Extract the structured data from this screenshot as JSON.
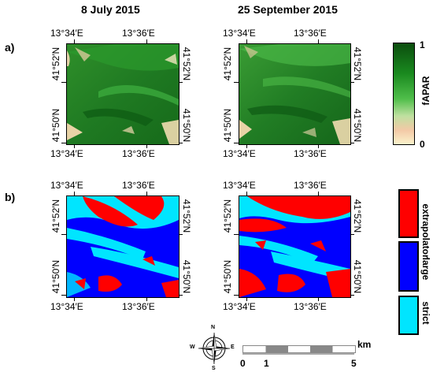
{
  "headers": [
    "8 July 2015",
    "25 September 2015"
  ],
  "row_labels": [
    "a)",
    "b)"
  ],
  "lon_ticks": [
    "13°34′E",
    "13°36′E"
  ],
  "lat_ticks": [
    "41°52′N",
    "41°50′N"
  ],
  "fapar_legend": {
    "title": "fAPAR",
    "max": "1",
    "min": "0",
    "colors": [
      "#0b4d0e",
      "#1a8a1f",
      "#4fbe4a",
      "#bfe0a0",
      "#f3c9a6",
      "#fbf3cc"
    ]
  },
  "class_legend": {
    "labels": [
      "strict",
      "large",
      "extrapolator"
    ],
    "colors": [
      "#00e5ff",
      "#0000ff",
      "#ff0000"
    ]
  },
  "compass": {
    "n": "N",
    "s": "S",
    "e": "E",
    "w": "W"
  },
  "scalebar": {
    "unit": "km",
    "labels": [
      "0",
      "1",
      "5"
    ]
  }
}
